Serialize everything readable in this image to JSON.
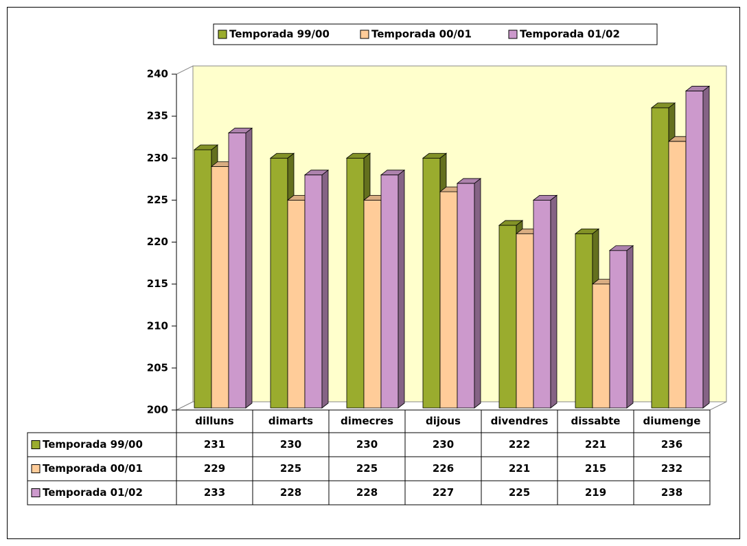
{
  "chart_data": {
    "type": "bar3d",
    "categories": [
      "dilluns",
      "dimarts",
      "dimecres",
      "dijous",
      "divendres",
      "dissabte",
      "diumenge"
    ],
    "series": [
      {
        "name": "Temporada 99/00",
        "color": "#9aac2e",
        "values": [
          231,
          230,
          230,
          230,
          222,
          221,
          236
        ]
      },
      {
        "name": "Temporada 00/01",
        "color": "#ffcc99",
        "values": [
          229,
          225,
          225,
          226,
          221,
          215,
          232
        ]
      },
      {
        "name": "Temporada 01/02",
        "color": "#cc99cc",
        "values": [
          233,
          228,
          228,
          227,
          225,
          219,
          238
        ]
      }
    ],
    "ylim": [
      200,
      240
    ],
    "yticks": [
      200,
      205,
      210,
      215,
      220,
      225,
      230,
      235,
      240
    ],
    "grid": false,
    "legend": "top",
    "wall_color": "#ffffcc"
  }
}
